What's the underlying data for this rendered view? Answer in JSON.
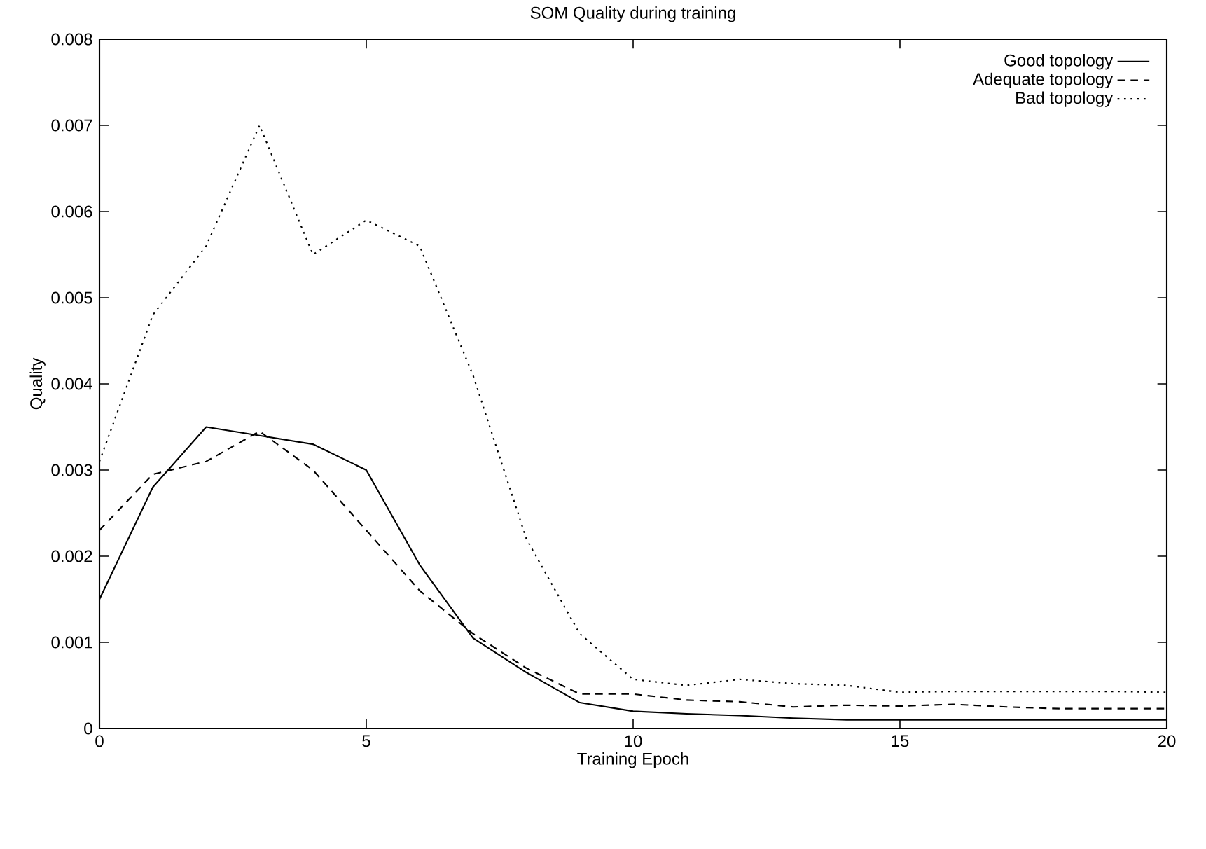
{
  "chart_data": {
    "type": "line",
    "title": "SOM Quality during training",
    "xlabel": "Training Epoch",
    "ylabel": "Quality",
    "x": [
      0,
      1,
      2,
      3,
      4,
      5,
      6,
      7,
      8,
      9,
      10,
      11,
      12,
      13,
      14,
      15,
      16,
      17,
      18,
      19,
      20
    ],
    "series": [
      {
        "name": "Good topology",
        "color": "#000000",
        "line_style": "solid",
        "values": [
          0.0015,
          0.0028,
          0.0035,
          0.0034,
          0.0033,
          0.003,
          0.0019,
          0.00105,
          0.00065,
          0.0003,
          0.0002,
          0.00017,
          0.00015,
          0.00012,
          0.0001,
          0.0001,
          0.0001,
          0.0001,
          0.0001,
          0.0001,
          0.0001
        ]
      },
      {
        "name": "Adequate topology",
        "color": "#000000",
        "line_style": "dashed",
        "values": [
          0.0023,
          0.00295,
          0.0031,
          0.00345,
          0.003,
          0.0023,
          0.0016,
          0.0011,
          0.0007,
          0.0004,
          0.0004,
          0.00033,
          0.00031,
          0.00025,
          0.00027,
          0.00026,
          0.00028,
          0.00025,
          0.00023,
          0.00023,
          0.00023
        ]
      },
      {
        "name": "Bad topology",
        "color": "#000000",
        "line_style": "dotted",
        "values": [
          0.0031,
          0.0048,
          0.0056,
          0.007,
          0.0055,
          0.0059,
          0.0056,
          0.0041,
          0.0022,
          0.0011,
          0.00057,
          0.0005,
          0.00057,
          0.00052,
          0.0005,
          0.00042,
          0.00043,
          0.00043,
          0.00043,
          0.00043,
          0.00042
        ]
      }
    ],
    "xlim": [
      0,
      20
    ],
    "xticks": [
      0,
      5,
      10,
      15,
      20
    ],
    "ylim": [
      0,
      0.008
    ],
    "yticks": [
      0,
      0.001,
      0.002,
      0.003,
      0.004,
      0.005,
      0.006,
      0.007,
      0.008
    ],
    "grid": false,
    "legend": "top right",
    "marker": "none"
  }
}
